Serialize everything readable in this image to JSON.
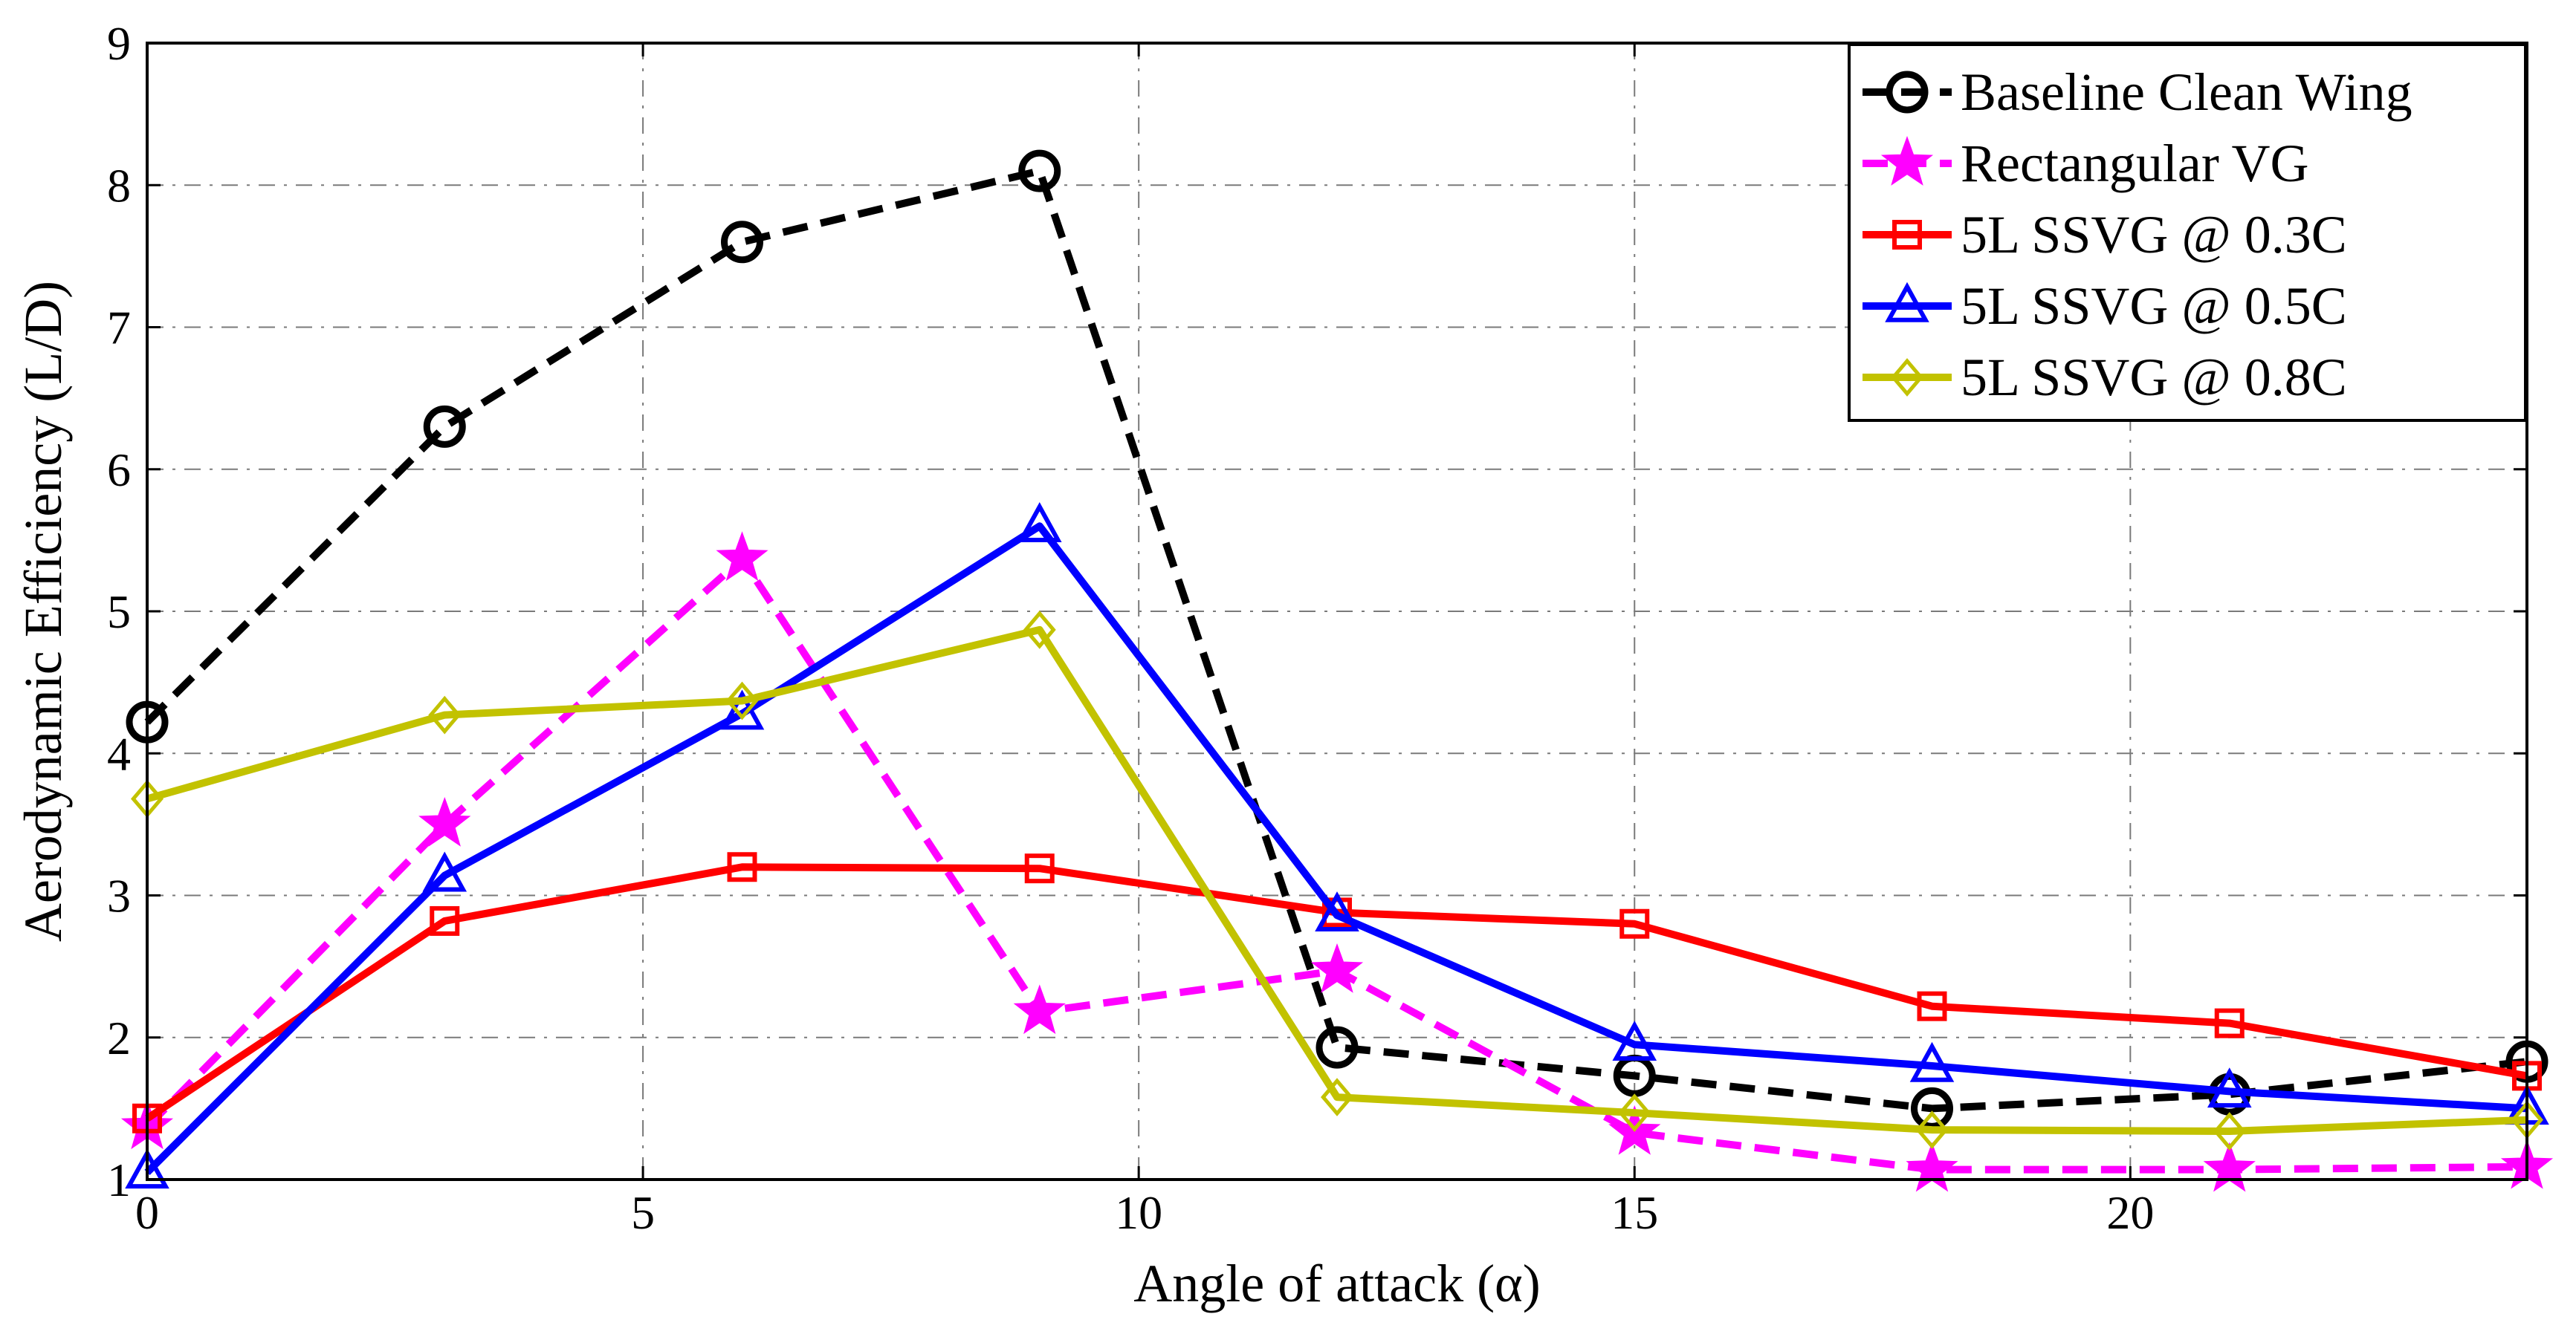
{
  "chart_data": {
    "type": "line",
    "title": "",
    "xlabel": "Angle of attack (α)",
    "ylabel": "Aerodynamic Efficiency (L/D)",
    "xlim": [
      0,
      24
    ],
    "ylim": [
      1,
      9
    ],
    "xticks": [
      0,
      5,
      10,
      15,
      20
    ],
    "yticks": [
      1,
      2,
      3,
      4,
      5,
      6,
      7,
      8,
      9
    ],
    "grid": true,
    "legend_position": "top-right",
    "x": [
      0,
      3,
      6,
      9,
      12,
      15,
      18,
      21,
      24
    ],
    "series": [
      {
        "name": "Baseline Clean Wing",
        "values": [
          4.22,
          6.3,
          7.6,
          8.1,
          1.93,
          1.73,
          1.5,
          1.6,
          1.83
        ],
        "color": "#000000",
        "dash": "dashed",
        "marker": "circle"
      },
      {
        "name": "Rectangular VG",
        "values": [
          1.37,
          3.5,
          5.37,
          2.18,
          2.47,
          1.33,
          1.07,
          1.07,
          1.09
        ],
        "color": "#ff00ff",
        "dash": "dashed",
        "marker": "star"
      },
      {
        "name": "5L SSVG @ 0.3C",
        "values": [
          1.43,
          2.82,
          3.2,
          3.19,
          2.88,
          2.8,
          2.22,
          2.1,
          1.73
        ],
        "color": "#ff0000",
        "dash": "solid",
        "marker": "square"
      },
      {
        "name": "5L SSVG @ 0.5C",
        "values": [
          1.05,
          3.14,
          4.28,
          5.6,
          2.86,
          1.95,
          1.8,
          1.62,
          1.5
        ],
        "color": "#0000ff",
        "dash": "solid",
        "marker": "triangle"
      },
      {
        "name": "5L SSVG @ 0.8C",
        "values": [
          3.68,
          4.27,
          4.37,
          4.87,
          1.58,
          1.47,
          1.35,
          1.34,
          1.42
        ],
        "color": "#c2c200",
        "dash": "solid",
        "marker": "diamond"
      }
    ]
  }
}
